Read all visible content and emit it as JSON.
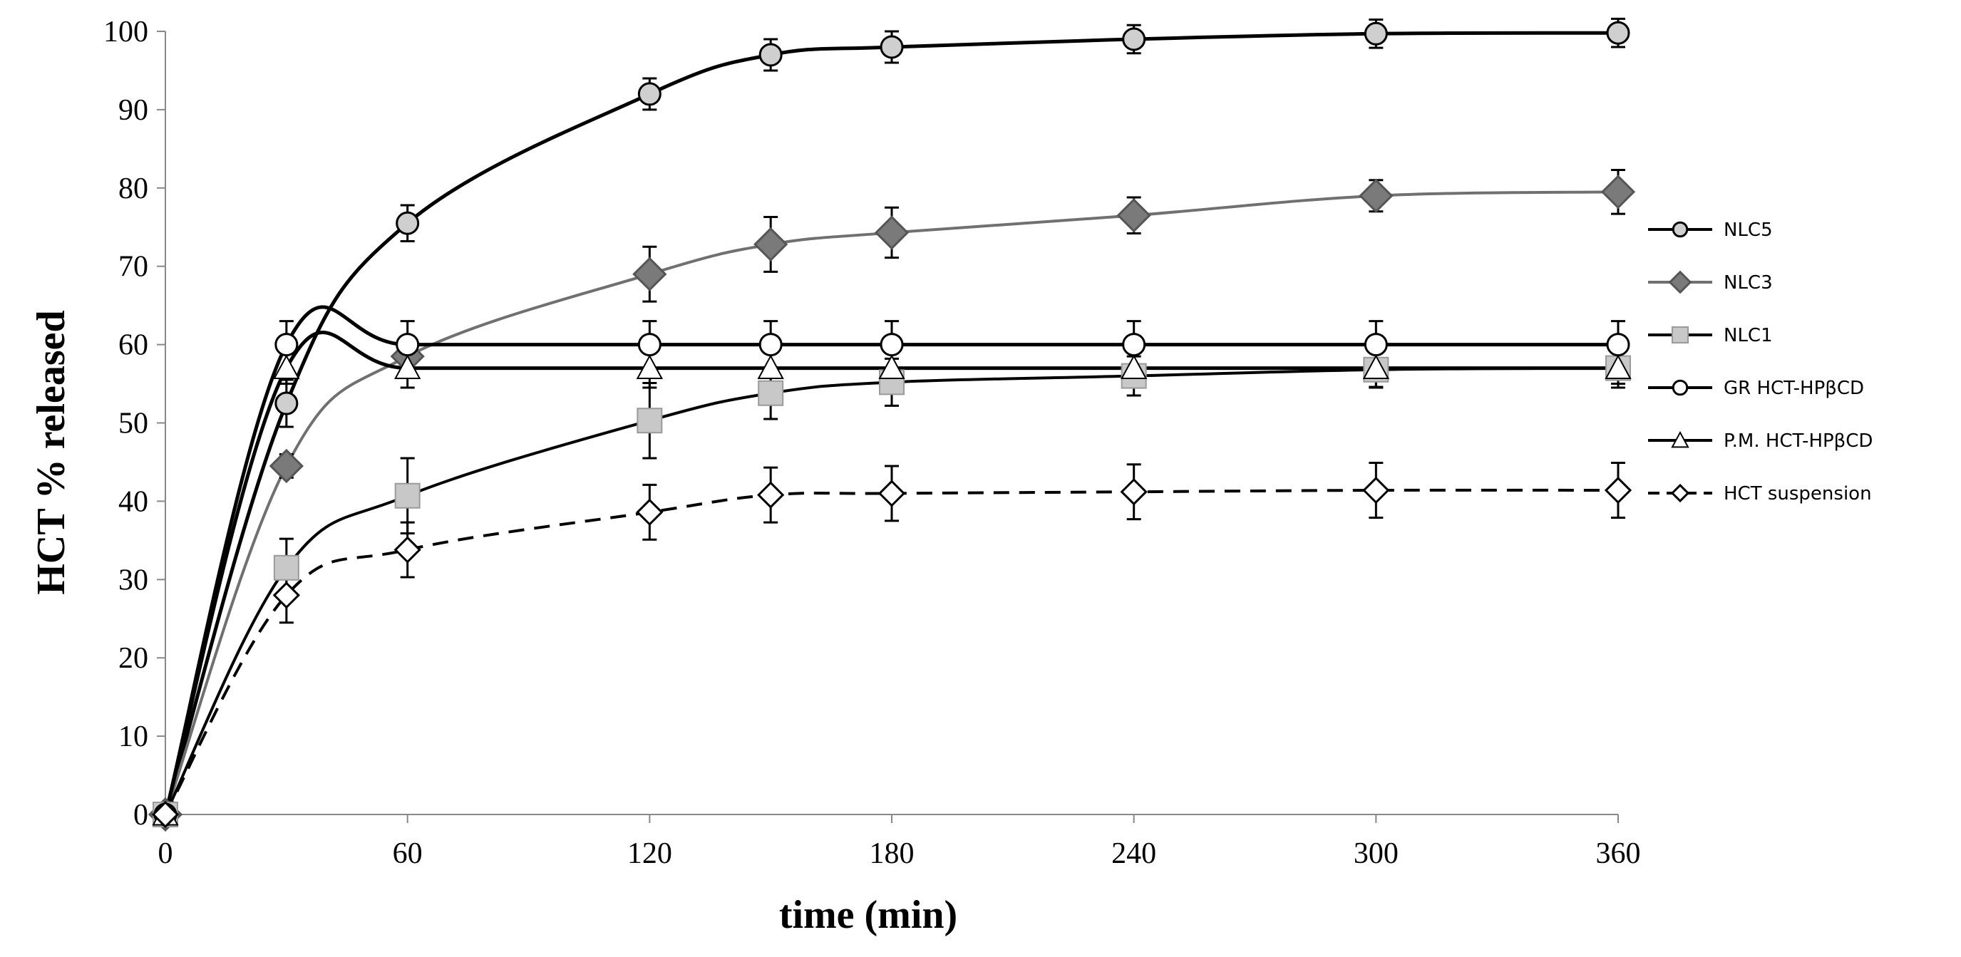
{
  "chart_data": {
    "type": "line",
    "title": "",
    "xlabel": "time (min)",
    "ylabel": "HCT % released",
    "xlim": [
      0,
      360
    ],
    "ylim": [
      0,
      100
    ],
    "x_ticks": [
      0,
      60,
      120,
      180,
      240,
      300,
      360
    ],
    "y_ticks": [
      0,
      10,
      20,
      30,
      40,
      50,
      60,
      70,
      80,
      90,
      100
    ],
    "grid": false,
    "legend_position": "right",
    "series": [
      {
        "name": "NLC5",
        "marker": "circle",
        "color": "#000000",
        "marker_fill": "#cfcfcf",
        "dashed": false,
        "x": [
          0,
          30,
          60,
          120,
          150,
          180,
          240,
          300,
          360
        ],
        "values": [
          0,
          52.5,
          75.5,
          92,
          97,
          98,
          99,
          99.7,
          99.8
        ],
        "errors": [
          0,
          3,
          2.3,
          2,
          2,
          2,
          1.8,
          1.8,
          1.8
        ]
      },
      {
        "name": "NLC3",
        "marker": "diamond",
        "color": "#707070",
        "marker_fill": "#7a7a7a",
        "dashed": false,
        "x": [
          0,
          30,
          60,
          120,
          150,
          180,
          240,
          300,
          360
        ],
        "values": [
          0,
          44.5,
          58.5,
          69,
          72.8,
          74.3,
          76.5,
          79,
          79.5
        ],
        "errors": [
          0,
          1.5,
          2.5,
          3.5,
          3.5,
          3.2,
          2.3,
          2,
          2.8
        ]
      },
      {
        "name": "NLC1",
        "marker": "square",
        "color": "#000000",
        "marker_fill": "#c8c8c8",
        "dashed": false,
        "x": [
          0,
          30,
          60,
          120,
          150,
          180,
          240,
          300,
          360
        ],
        "values": [
          0,
          31.5,
          40.7,
          50.3,
          53.8,
          55.2,
          56,
          56.8,
          57
        ],
        "errors": [
          0,
          3.7,
          4.8,
          4.8,
          3.3,
          3,
          2.5,
          2.2,
          2
        ]
      },
      {
        "name": "GR HCT-HPβCD",
        "marker": "circle-open",
        "color": "#000000",
        "marker_fill": "#ffffff",
        "dashed": false,
        "x": [
          0,
          30,
          60,
          120,
          150,
          180,
          240,
          300,
          360
        ],
        "values": [
          0,
          60,
          60,
          60,
          60,
          60,
          60,
          60,
          60
        ],
        "errors": [
          0,
          3,
          3,
          3,
          3,
          3,
          3,
          3,
          3
        ]
      },
      {
        "name": "P.M. HCT-HPβCD",
        "marker": "triangle",
        "color": "#000000",
        "marker_fill": "#ffffff",
        "dashed": false,
        "x": [
          0,
          30,
          60,
          120,
          150,
          180,
          240,
          300,
          360
        ],
        "values": [
          0,
          57,
          57,
          57,
          57,
          57,
          57,
          57,
          57
        ],
        "errors": [
          0,
          2,
          2.5,
          2.5,
          2.5,
          2.5,
          2.5,
          2.5,
          2.5
        ]
      },
      {
        "name": "HCT suspension",
        "marker": "diamond-open",
        "color": "#000000",
        "marker_fill": "#ffffff",
        "dashed": true,
        "x": [
          0,
          30,
          60,
          120,
          150,
          180,
          240,
          300,
          360
        ],
        "values": [
          0,
          28,
          33.8,
          38.6,
          40.8,
          41,
          41.2,
          41.4,
          41.4
        ],
        "errors": [
          0,
          3.5,
          3.5,
          3.5,
          3.5,
          3.5,
          3.5,
          3.5,
          3.5
        ]
      }
    ]
  }
}
